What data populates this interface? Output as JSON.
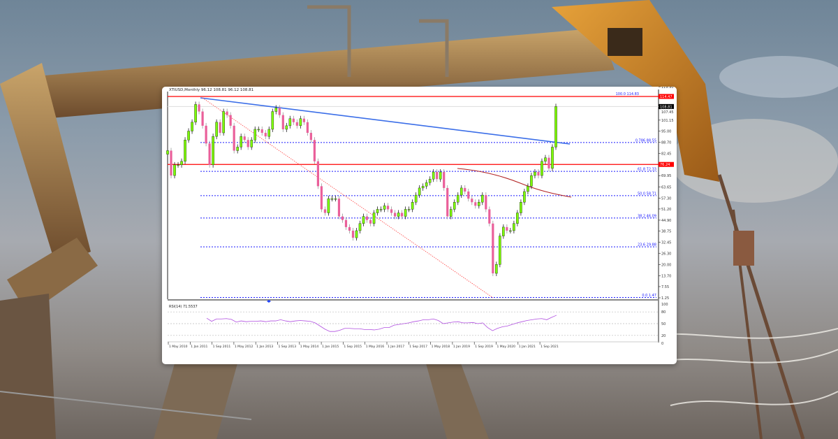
{
  "header": {
    "title": "XTIUSD,Monthly  96.12 108.81 96.12 108.81"
  },
  "colors": {
    "bull": "#7cfc00",
    "bear": "#ea5f9a",
    "trendline": "#3b6ee8",
    "fib": "#1a1aff",
    "level": "#ff0000",
    "ma": "#b22222",
    "rsi": "#b04fe0"
  },
  "chart_data": {
    "type": "candlestick",
    "title": "XTIUSD,Monthly",
    "ylim": [
      1.25,
      119.9
    ],
    "y_ticks": [
      "119.90",
      "107.45",
      "101.15",
      "95.00",
      "88.70",
      "82.45",
      "69.95",
      "63.65",
      "57.30",
      "51.20",
      "44.90",
      "38.75",
      "32.45",
      "26.30",
      "20.00",
      "13.70",
      "7.55",
      "1.25"
    ],
    "price_tags": [
      {
        "label": "114.47",
        "value": 114.47,
        "color": "#ff0000"
      },
      {
        "label": "108.81",
        "value": 108.81,
        "color": "#000000"
      },
      {
        "label": "76.24",
        "value": 76.24,
        "color": "#ff0000"
      }
    ],
    "x_ticks": [
      "1 May 2010",
      "1 Jan 2011",
      "1 Sep 2011",
      "1 May 2012",
      "1 Jan 2013",
      "1 Sep 2013",
      "1 May 2014",
      "1 Jan 2015",
      "1 Sep 2015",
      "1 May 2016",
      "1 Jan 2017",
      "1 Sep 2017",
      "1 May 2018",
      "1 Jan 2019",
      "1 Sep 2019",
      "1 May 2020",
      "1 Jan 2021",
      "1 Sep 2021"
    ],
    "first_open": 82,
    "closes": [
      84,
      70,
      76,
      76,
      78,
      90,
      95,
      100,
      110,
      106,
      98,
      88,
      76,
      92,
      100,
      94,
      106,
      104,
      98,
      84,
      86,
      92,
      90,
      86,
      90,
      96,
      96,
      94,
      92,
      96,
      106,
      108,
      104,
      96,
      98,
      102,
      100,
      98,
      102,
      100,
      94,
      90,
      78,
      64,
      51,
      49,
      57,
      57,
      57,
      47,
      45,
      41,
      39,
      35,
      39,
      43,
      47,
      45,
      43,
      49,
      51,
      51,
      53,
      51,
      49,
      47,
      49,
      47,
      51,
      51,
      55,
      59,
      63,
      64,
      66,
      68,
      72,
      68,
      72,
      63,
      47,
      51,
      55,
      59,
      63,
      61,
      57,
      55,
      53,
      55,
      59,
      51,
      43,
      15,
      20,
      36,
      41,
      39,
      39,
      43,
      49,
      55,
      61,
      64,
      70,
      72,
      70,
      78,
      80,
      74,
      86,
      108.81
    ],
    "fib_levels": [
      {
        "label": "100.0 114.83",
        "value": 114.83
      },
      {
        "label": "0.786 88.55",
        "value": 88.55
      },
      {
        "label": "61.8 72.33",
        "value": 72.33
      },
      {
        "label": "50.0 58.71",
        "value": 58.71
      },
      {
        "label": "38.2 46.09",
        "value": 46.09
      },
      {
        "label": "23.6 29.88",
        "value": 29.88
      },
      {
        "label": "0.0 1.47",
        "value": 1.47
      }
    ],
    "horizontal_levels": [
      114.47,
      76.24
    ],
    "rsi": {
      "label": "RSI(14) 71.5537",
      "ticks": [
        "100",
        "80",
        "50",
        "20",
        "0"
      ],
      "levels": [
        80,
        50,
        20
      ],
      "values": [
        64,
        56,
        62,
        62,
        63,
        61,
        54,
        57,
        55,
        56,
        56,
        57,
        55,
        57,
        57,
        60,
        57,
        55,
        57,
        58,
        57,
        56,
        52,
        44,
        36,
        30,
        30,
        33,
        38,
        38,
        37,
        37,
        35,
        35,
        34,
        36,
        40,
        40,
        46,
        48,
        50,
        52,
        55,
        57,
        60,
        60,
        62,
        58,
        50,
        52,
        54,
        55,
        52,
        52,
        53,
        50,
        52,
        40,
        32,
        38,
        42,
        44,
        48,
        52,
        55,
        58,
        60,
        62,
        63,
        60,
        66,
        71.5537
      ]
    }
  }
}
